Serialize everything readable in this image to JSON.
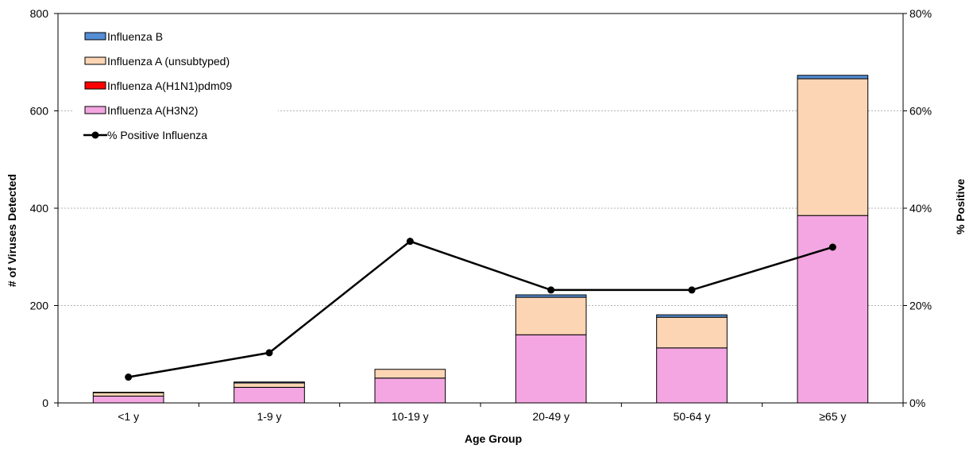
{
  "chart_data": {
    "type": "bar",
    "stacked": true,
    "categories": [
      "<1 y",
      "1-9 y",
      "10-19 y",
      "20-49 y",
      "50-64 y",
      "≥65 y"
    ],
    "series": [
      {
        "name": "Influenza A(H3N2)",
        "color": "#f3a6e2",
        "values": [
          14,
          32,
          51,
          140,
          113,
          385
        ]
      },
      {
        "name": "Influenza A(H1N1)pdm09",
        "color": "#ff0000",
        "values": [
          0,
          0,
          0,
          0,
          0,
          0
        ]
      },
      {
        "name": "Influenza A (unsubtyped)",
        "color": "#fcd5b4",
        "values": [
          7,
          9,
          18,
          77,
          63,
          281
        ]
      },
      {
        "name": "Influenza B",
        "color": "#558ed5",
        "values": [
          1,
          2,
          0,
          5,
          5,
          7
        ]
      }
    ],
    "line_series": {
      "name": "% Positive Influenza",
      "color": "#000000",
      "axis": "right",
      "values": [
        5.3,
        10.3,
        33.2,
        23.2,
        23.2,
        32.0
      ]
    },
    "xlabel": "Age Group",
    "ylabel": "# of Viruses Detected",
    "y2label": "% Positive",
    "ylim": [
      0,
      800
    ],
    "y2lim": [
      0,
      80
    ],
    "yticks": [
      "0",
      "200",
      "400",
      "600",
      "800"
    ],
    "y2ticks": [
      "0%",
      "20%",
      "40%",
      "60%",
      "80%"
    ],
    "grid": true,
    "legend_position": "top-left",
    "legend_order": [
      "Influenza B",
      "Influenza A (unsubtyped)",
      "Influenza A(H1N1)pdm09",
      "Influenza A(H3N2)",
      "% Positive Influenza"
    ]
  }
}
